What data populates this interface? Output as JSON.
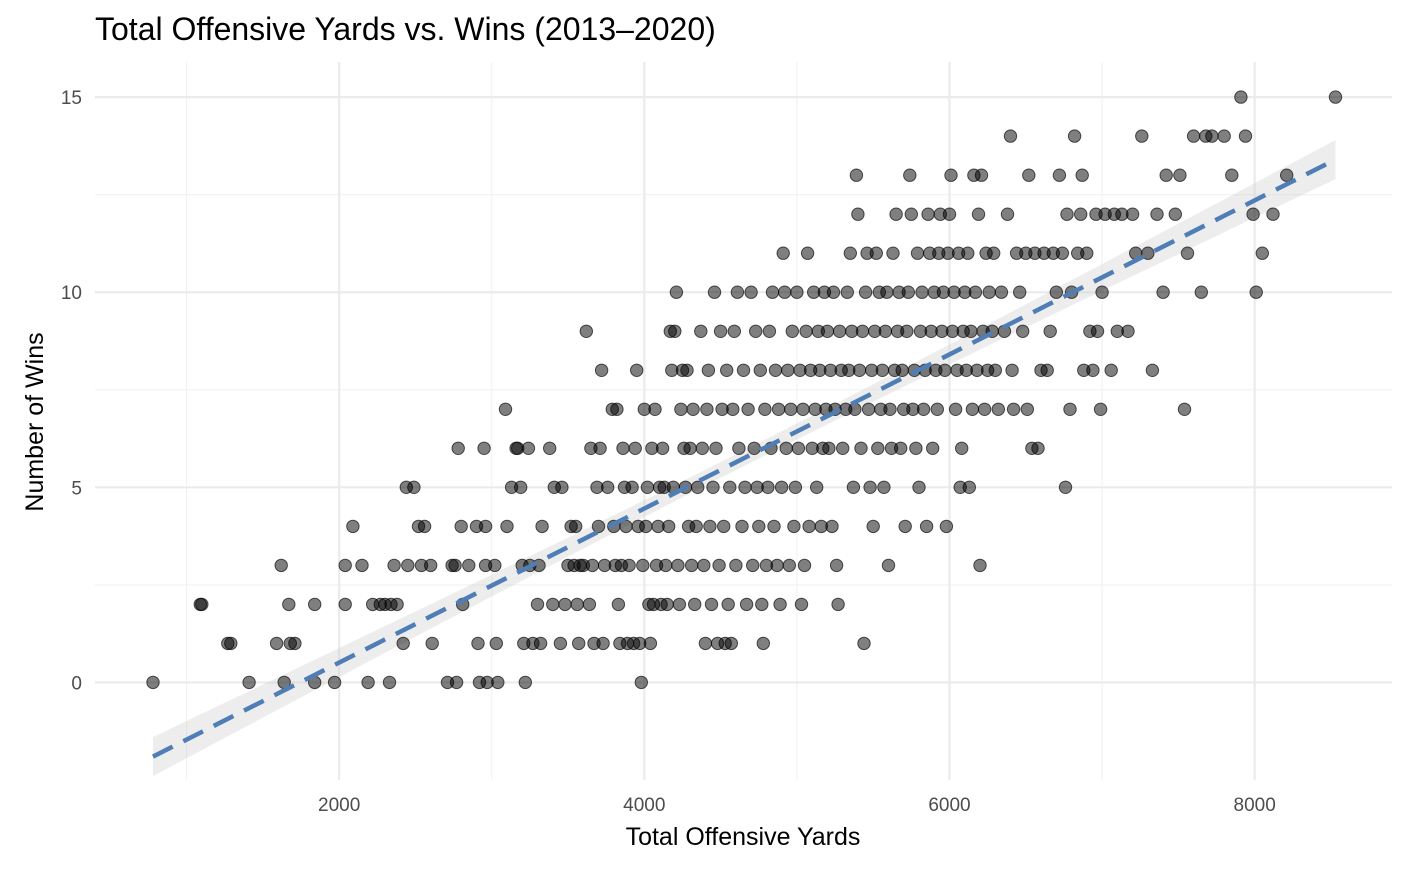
{
  "chart_data": {
    "type": "scatter",
    "title": "Total Offensive Yards vs. Wins (2013–2020)",
    "xlabel": "Total Offensive Yards",
    "ylabel": "Number of Wins",
    "xlim": [
      400,
      8900
    ],
    "ylim": [
      -2.5,
      15.9
    ],
    "x_major_ticks": [
      2000,
      4000,
      6000,
      8000
    ],
    "x_minor_ticks": [
      1000,
      3000,
      5000,
      7000
    ],
    "y_major_ticks": [
      0,
      5,
      10,
      15
    ],
    "y_minor_ticks": [
      2.5,
      7.5,
      12.5
    ],
    "x_tick_labels": [
      "2000",
      "4000",
      "6000",
      "8000"
    ],
    "y_tick_labels": [
      "0",
      "5",
      "10",
      "15"
    ],
    "grid": true,
    "legend": "none",
    "trend": {
      "method": "linear regression",
      "x_range": [
        780,
        8530
      ],
      "y_range": [
        -1.9,
        13.4
      ],
      "ci_halfwidth_ends": 0.5,
      "ci_halfwidth_center": 0.2,
      "line_color": "#4F7DB5",
      "ribbon_color": "#CCCCCC",
      "line_style": "dashed"
    },
    "point_color": "#000000",
    "point_alpha": 0.5,
    "points": [
      [
        780,
        0
      ],
      [
        1090,
        2
      ],
      [
        1100,
        2
      ],
      [
        1270,
        1
      ],
      [
        1290,
        1
      ],
      [
        1410,
        0
      ],
      [
        1590,
        1
      ],
      [
        1620,
        3
      ],
      [
        1640,
        0
      ],
      [
        1670,
        2
      ],
      [
        1680,
        1
      ],
      [
        1710,
        1
      ],
      [
        1840,
        2
      ],
      [
        1840,
        0
      ],
      [
        1970,
        0
      ],
      [
        2040,
        2
      ],
      [
        2040,
        3
      ],
      [
        2090,
        4
      ],
      [
        2150,
        3
      ],
      [
        2190,
        0
      ],
      [
        2220,
        2
      ],
      [
        2270,
        2
      ],
      [
        2300,
        2
      ],
      [
        2340,
        2
      ],
      [
        2330,
        0
      ],
      [
        2360,
        3
      ],
      [
        2380,
        2
      ],
      [
        2420,
        1
      ],
      [
        2440,
        5
      ],
      [
        2450,
        3
      ],
      [
        2490,
        5
      ],
      [
        2520,
        4
      ],
      [
        2540,
        3
      ],
      [
        2560,
        4
      ],
      [
        2600,
        3
      ],
      [
        2610,
        1
      ],
      [
        2710,
        0
      ],
      [
        2740,
        3
      ],
      [
        2760,
        3
      ],
      [
        2770,
        0
      ],
      [
        2780,
        6
      ],
      [
        2800,
        4
      ],
      [
        2810,
        2
      ],
      [
        2850,
        3
      ],
      [
        2900,
        4
      ],
      [
        2910,
        1
      ],
      [
        2920,
        0
      ],
      [
        2950,
        6
      ],
      [
        2960,
        3
      ],
      [
        2960,
        4
      ],
      [
        2970,
        0
      ],
      [
        3020,
        3
      ],
      [
        3030,
        1
      ],
      [
        3040,
        0
      ],
      [
        3090,
        7
      ],
      [
        3100,
        4
      ],
      [
        3130,
        5
      ],
      [
        3160,
        6
      ],
      [
        3170,
        6
      ],
      [
        3190,
        5
      ],
      [
        3200,
        3
      ],
      [
        3210,
        1
      ],
      [
        3220,
        0
      ],
      [
        3240,
        6
      ],
      [
        3250,
        3
      ],
      [
        3270,
        1
      ],
      [
        3300,
        2
      ],
      [
        3310,
        3
      ],
      [
        3320,
        1
      ],
      [
        3330,
        4
      ],
      [
        3380,
        6
      ],
      [
        3400,
        2
      ],
      [
        3410,
        5
      ],
      [
        3450,
        1
      ],
      [
        3460,
        5
      ],
      [
        3480,
        2
      ],
      [
        3500,
        3
      ],
      [
        3520,
        4
      ],
      [
        3540,
        3
      ],
      [
        3550,
        4
      ],
      [
        3560,
        2
      ],
      [
        3570,
        1
      ],
      [
        3580,
        3
      ],
      [
        3600,
        3
      ],
      [
        3620,
        9
      ],
      [
        3640,
        2
      ],
      [
        3650,
        6
      ],
      [
        3660,
        3
      ],
      [
        3670,
        1
      ],
      [
        3690,
        5
      ],
      [
        3700,
        4
      ],
      [
        3710,
        6
      ],
      [
        3720,
        8
      ],
      [
        3730,
        1
      ],
      [
        3740,
        3
      ],
      [
        3760,
        5
      ],
      [
        3790,
        7
      ],
      [
        3800,
        4
      ],
      [
        3810,
        3
      ],
      [
        3820,
        7
      ],
      [
        3830,
        2
      ],
      [
        3840,
        1
      ],
      [
        3850,
        3
      ],
      [
        3860,
        6
      ],
      [
        3870,
        5
      ],
      [
        3880,
        4
      ],
      [
        3890,
        1
      ],
      [
        3900,
        3
      ],
      [
        3920,
        5
      ],
      [
        3930,
        1
      ],
      [
        3940,
        6
      ],
      [
        3950,
        8
      ],
      [
        3960,
        4
      ],
      [
        3970,
        1
      ],
      [
        3980,
        0
      ],
      [
        3990,
        3
      ],
      [
        4000,
        7
      ],
      [
        4010,
        4
      ],
      [
        4020,
        5
      ],
      [
        4030,
        2
      ],
      [
        4040,
        1
      ],
      [
        4050,
        6
      ],
      [
        4060,
        2
      ],
      [
        4070,
        7
      ],
      [
        4080,
        3
      ],
      [
        4090,
        4
      ],
      [
        4100,
        5
      ],
      [
        4110,
        2
      ],
      [
        4120,
        6
      ],
      [
        4130,
        5
      ],
      [
        4140,
        3
      ],
      [
        4150,
        2
      ],
      [
        4160,
        4
      ],
      [
        4170,
        9
      ],
      [
        4180,
        8
      ],
      [
        4190,
        5
      ],
      [
        4200,
        9
      ],
      [
        4210,
        10
      ],
      [
        4220,
        3
      ],
      [
        4230,
        2
      ],
      [
        4240,
        7
      ],
      [
        4250,
        8
      ],
      [
        4260,
        6
      ],
      [
        4270,
        5
      ],
      [
        4280,
        8
      ],
      [
        4290,
        4
      ],
      [
        4300,
        6
      ],
      [
        4310,
        3
      ],
      [
        4320,
        7
      ],
      [
        4330,
        2
      ],
      [
        4340,
        4
      ],
      [
        4350,
        5
      ],
      [
        4370,
        9
      ],
      [
        4380,
        6
      ],
      [
        4390,
        3
      ],
      [
        4400,
        1
      ],
      [
        4410,
        7
      ],
      [
        4420,
        8
      ],
      [
        4430,
        4
      ],
      [
        4440,
        2
      ],
      [
        4450,
        5
      ],
      [
        4460,
        10
      ],
      [
        4470,
        6
      ],
      [
        4480,
        1
      ],
      [
        4490,
        3
      ],
      [
        4500,
        9
      ],
      [
        4510,
        7
      ],
      [
        4520,
        4
      ],
      [
        4530,
        1
      ],
      [
        4540,
        8
      ],
      [
        4550,
        2
      ],
      [
        4560,
        5
      ],
      [
        4570,
        1
      ],
      [
        4580,
        7
      ],
      [
        4590,
        9
      ],
      [
        4600,
        3
      ],
      [
        4610,
        10
      ],
      [
        4620,
        6
      ],
      [
        4640,
        4
      ],
      [
        4650,
        8
      ],
      [
        4660,
        5
      ],
      [
        4670,
        2
      ],
      [
        4680,
        7
      ],
      [
        4700,
        10
      ],
      [
        4710,
        3
      ],
      [
        4720,
        6
      ],
      [
        4730,
        9
      ],
      [
        4740,
        5
      ],
      [
        4750,
        4
      ],
      [
        4760,
        8
      ],
      [
        4770,
        2
      ],
      [
        4780,
        1
      ],
      [
        4790,
        7
      ],
      [
        4800,
        3
      ],
      [
        4810,
        5
      ],
      [
        4820,
        9
      ],
      [
        4830,
        6
      ],
      [
        4840,
        10
      ],
      [
        4850,
        4
      ],
      [
        4860,
        8
      ],
      [
        4870,
        3
      ],
      [
        4880,
        7
      ],
      [
        4890,
        2
      ],
      [
        4900,
        5
      ],
      [
        4910,
        11
      ],
      [
        4920,
        10
      ],
      [
        4930,
        6
      ],
      [
        4940,
        8
      ],
      [
        4950,
        3
      ],
      [
        4960,
        7
      ],
      [
        4970,
        9
      ],
      [
        4980,
        4
      ],
      [
        4990,
        5
      ],
      [
        5000,
        10
      ],
      [
        5010,
        6
      ],
      [
        5020,
        8
      ],
      [
        5030,
        2
      ],
      [
        5040,
        7
      ],
      [
        5050,
        3
      ],
      [
        5060,
        9
      ],
      [
        5070,
        11
      ],
      [
        5080,
        4
      ],
      [
        5090,
        8
      ],
      [
        5100,
        6
      ],
      [
        5110,
        10
      ],
      [
        5120,
        7
      ],
      [
        5130,
        5
      ],
      [
        5140,
        9
      ],
      [
        5150,
        8
      ],
      [
        5160,
        4
      ],
      [
        5170,
        6
      ],
      [
        5180,
        10
      ],
      [
        5190,
        7
      ],
      [
        5200,
        9
      ],
      [
        5210,
        6
      ],
      [
        5220,
        8
      ],
      [
        5230,
        4
      ],
      [
        5240,
        10
      ],
      [
        5250,
        7
      ],
      [
        5260,
        3
      ],
      [
        5270,
        2
      ],
      [
        5280,
        9
      ],
      [
        5290,
        8
      ],
      [
        5300,
        6
      ],
      [
        5320,
        7
      ],
      [
        5330,
        10
      ],
      [
        5340,
        8
      ],
      [
        5350,
        11
      ],
      [
        5360,
        9
      ],
      [
        5370,
        5
      ],
      [
        5380,
        7
      ],
      [
        5390,
        13
      ],
      [
        5400,
        12
      ],
      [
        5410,
        8
      ],
      [
        5420,
        6
      ],
      [
        5430,
        9
      ],
      [
        5440,
        1
      ],
      [
        5450,
        10
      ],
      [
        5460,
        11
      ],
      [
        5470,
        7
      ],
      [
        5480,
        5
      ],
      [
        5490,
        8
      ],
      [
        5500,
        4
      ],
      [
        5510,
        9
      ],
      [
        5520,
        11
      ],
      [
        5530,
        6
      ],
      [
        5540,
        10
      ],
      [
        5550,
        7
      ],
      [
        5560,
        8
      ],
      [
        5570,
        5
      ],
      [
        5580,
        9
      ],
      [
        5590,
        10
      ],
      [
        5600,
        3
      ],
      [
        5610,
        7
      ],
      [
        5620,
        6
      ],
      [
        5630,
        11
      ],
      [
        5640,
        8
      ],
      [
        5650,
        12
      ],
      [
        5660,
        9
      ],
      [
        5670,
        10
      ],
      [
        5680,
        6
      ],
      [
        5690,
        8
      ],
      [
        5700,
        7
      ],
      [
        5710,
        4
      ],
      [
        5720,
        9
      ],
      [
        5730,
        10
      ],
      [
        5740,
        13
      ],
      [
        5750,
        12
      ],
      [
        5760,
        7
      ],
      [
        5770,
        8
      ],
      [
        5780,
        6
      ],
      [
        5790,
        11
      ],
      [
        5800,
        5
      ],
      [
        5810,
        9
      ],
      [
        5820,
        10
      ],
      [
        5830,
        7
      ],
      [
        5840,
        8
      ],
      [
        5850,
        4
      ],
      [
        5860,
        12
      ],
      [
        5870,
        11
      ],
      [
        5880,
        9
      ],
      [
        5890,
        6
      ],
      [
        5900,
        10
      ],
      [
        5910,
        8
      ],
      [
        5920,
        7
      ],
      [
        5930,
        11
      ],
      [
        5940,
        12
      ],
      [
        5950,
        9
      ],
      [
        5960,
        10
      ],
      [
        5970,
        8
      ],
      [
        5980,
        4
      ],
      [
        5990,
        11
      ],
      [
        6000,
        12
      ],
      [
        6010,
        13
      ],
      [
        6020,
        9
      ],
      [
        6030,
        10
      ],
      [
        6040,
        7
      ],
      [
        6050,
        8
      ],
      [
        6060,
        11
      ],
      [
        6070,
        5
      ],
      [
        6080,
        6
      ],
      [
        6090,
        9
      ],
      [
        6100,
        10
      ],
      [
        6110,
        8
      ],
      [
        6120,
        11
      ],
      [
        6130,
        5
      ],
      [
        6140,
        9
      ],
      [
        6150,
        7
      ],
      [
        6160,
        13
      ],
      [
        6170,
        10
      ],
      [
        6180,
        8
      ],
      [
        6190,
        12
      ],
      [
        6200,
        3
      ],
      [
        6210,
        13
      ],
      [
        6220,
        9
      ],
      [
        6230,
        7
      ],
      [
        6240,
        11
      ],
      [
        6250,
        8
      ],
      [
        6260,
        10
      ],
      [
        6280,
        9
      ],
      [
        6290,
        11
      ],
      [
        6300,
        8
      ],
      [
        6320,
        7
      ],
      [
        6340,
        10
      ],
      [
        6360,
        9
      ],
      [
        6380,
        12
      ],
      [
        6400,
        14
      ],
      [
        6410,
        8
      ],
      [
        6420,
        7
      ],
      [
        6440,
        11
      ],
      [
        6460,
        10
      ],
      [
        6480,
        9
      ],
      [
        6500,
        11
      ],
      [
        6510,
        7
      ],
      [
        6520,
        13
      ],
      [
        6540,
        6
      ],
      [
        6560,
        11
      ],
      [
        6580,
        6
      ],
      [
        6600,
        8
      ],
      [
        6620,
        11
      ],
      [
        6640,
        8
      ],
      [
        6660,
        9
      ],
      [
        6680,
        11
      ],
      [
        6700,
        10
      ],
      [
        6720,
        13
      ],
      [
        6740,
        11
      ],
      [
        6760,
        5
      ],
      [
        6770,
        12
      ],
      [
        6790,
        7
      ],
      [
        6800,
        10
      ],
      [
        6820,
        14
      ],
      [
        6840,
        11
      ],
      [
        6860,
        12
      ],
      [
        6870,
        13
      ],
      [
        6880,
        8
      ],
      [
        6900,
        11
      ],
      [
        6920,
        9
      ],
      [
        6940,
        8
      ],
      [
        6960,
        12
      ],
      [
        6970,
        9
      ],
      [
        6990,
        7
      ],
      [
        7000,
        10
      ],
      [
        7020,
        12
      ],
      [
        7060,
        8
      ],
      [
        7080,
        12
      ],
      [
        7100,
        9
      ],
      [
        7130,
        12
      ],
      [
        7170,
        9
      ],
      [
        7200,
        12
      ],
      [
        7220,
        11
      ],
      [
        7260,
        14
      ],
      [
        7300,
        11
      ],
      [
        7330,
        8
      ],
      [
        7360,
        12
      ],
      [
        7400,
        10
      ],
      [
        7420,
        13
      ],
      [
        7480,
        12
      ],
      [
        7510,
        13
      ],
      [
        7540,
        7
      ],
      [
        7560,
        11
      ],
      [
        7600,
        14
      ],
      [
        7650,
        10
      ],
      [
        7680,
        14
      ],
      [
        7720,
        14
      ],
      [
        7800,
        14
      ],
      [
        7850,
        13
      ],
      [
        7910,
        15
      ],
      [
        7940,
        14
      ],
      [
        7990,
        12
      ],
      [
        8010,
        10
      ],
      [
        8050,
        11
      ],
      [
        8120,
        12
      ],
      [
        8210,
        13
      ],
      [
        8530,
        15
      ]
    ]
  }
}
